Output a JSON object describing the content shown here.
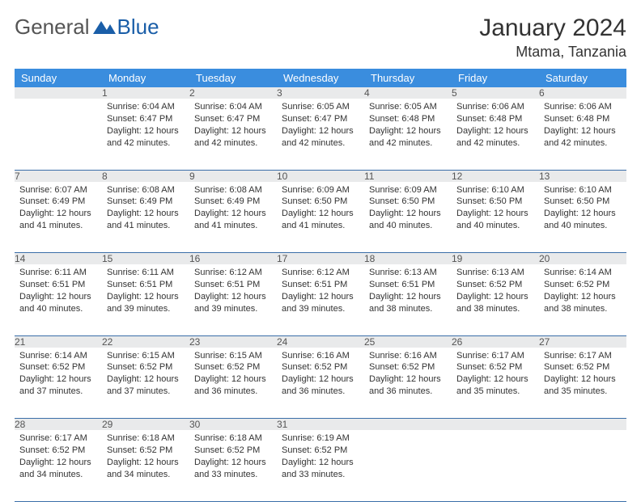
{
  "brand": {
    "part1": "General",
    "part2": "Blue"
  },
  "header": {
    "title": "January 2024",
    "location": "Mtama, Tanzania"
  },
  "colors": {
    "header_bg": "#3a8dde",
    "header_text": "#ffffff",
    "daynum_bg": "#e9eaeb",
    "row_border": "#3a6ea8",
    "brand_blue": "#1a5ea8"
  },
  "weekdays": [
    "Sunday",
    "Monday",
    "Tuesday",
    "Wednesday",
    "Thursday",
    "Friday",
    "Saturday"
  ],
  "first_weekday_index": 1,
  "days": {
    "1": {
      "sunrise": "6:04 AM",
      "sunset": "6:47 PM",
      "daylight": "12 hours and 42 minutes."
    },
    "2": {
      "sunrise": "6:04 AM",
      "sunset": "6:47 PM",
      "daylight": "12 hours and 42 minutes."
    },
    "3": {
      "sunrise": "6:05 AM",
      "sunset": "6:47 PM",
      "daylight": "12 hours and 42 minutes."
    },
    "4": {
      "sunrise": "6:05 AM",
      "sunset": "6:48 PM",
      "daylight": "12 hours and 42 minutes."
    },
    "5": {
      "sunrise": "6:06 AM",
      "sunset": "6:48 PM",
      "daylight": "12 hours and 42 minutes."
    },
    "6": {
      "sunrise": "6:06 AM",
      "sunset": "6:48 PM",
      "daylight": "12 hours and 42 minutes."
    },
    "7": {
      "sunrise": "6:07 AM",
      "sunset": "6:49 PM",
      "daylight": "12 hours and 41 minutes."
    },
    "8": {
      "sunrise": "6:08 AM",
      "sunset": "6:49 PM",
      "daylight": "12 hours and 41 minutes."
    },
    "9": {
      "sunrise": "6:08 AM",
      "sunset": "6:49 PM",
      "daylight": "12 hours and 41 minutes."
    },
    "10": {
      "sunrise": "6:09 AM",
      "sunset": "6:50 PM",
      "daylight": "12 hours and 41 minutes."
    },
    "11": {
      "sunrise": "6:09 AM",
      "sunset": "6:50 PM",
      "daylight": "12 hours and 40 minutes."
    },
    "12": {
      "sunrise": "6:10 AM",
      "sunset": "6:50 PM",
      "daylight": "12 hours and 40 minutes."
    },
    "13": {
      "sunrise": "6:10 AM",
      "sunset": "6:50 PM",
      "daylight": "12 hours and 40 minutes."
    },
    "14": {
      "sunrise": "6:11 AM",
      "sunset": "6:51 PM",
      "daylight": "12 hours and 40 minutes."
    },
    "15": {
      "sunrise": "6:11 AM",
      "sunset": "6:51 PM",
      "daylight": "12 hours and 39 minutes."
    },
    "16": {
      "sunrise": "6:12 AM",
      "sunset": "6:51 PM",
      "daylight": "12 hours and 39 minutes."
    },
    "17": {
      "sunrise": "6:12 AM",
      "sunset": "6:51 PM",
      "daylight": "12 hours and 39 minutes."
    },
    "18": {
      "sunrise": "6:13 AM",
      "sunset": "6:51 PM",
      "daylight": "12 hours and 38 minutes."
    },
    "19": {
      "sunrise": "6:13 AM",
      "sunset": "6:52 PM",
      "daylight": "12 hours and 38 minutes."
    },
    "20": {
      "sunrise": "6:14 AM",
      "sunset": "6:52 PM",
      "daylight": "12 hours and 38 minutes."
    },
    "21": {
      "sunrise": "6:14 AM",
      "sunset": "6:52 PM",
      "daylight": "12 hours and 37 minutes."
    },
    "22": {
      "sunrise": "6:15 AM",
      "sunset": "6:52 PM",
      "daylight": "12 hours and 37 minutes."
    },
    "23": {
      "sunrise": "6:15 AM",
      "sunset": "6:52 PM",
      "daylight": "12 hours and 36 minutes."
    },
    "24": {
      "sunrise": "6:16 AM",
      "sunset": "6:52 PM",
      "daylight": "12 hours and 36 minutes."
    },
    "25": {
      "sunrise": "6:16 AM",
      "sunset": "6:52 PM",
      "daylight": "12 hours and 36 minutes."
    },
    "26": {
      "sunrise": "6:17 AM",
      "sunset": "6:52 PM",
      "daylight": "12 hours and 35 minutes."
    },
    "27": {
      "sunrise": "6:17 AM",
      "sunset": "6:52 PM",
      "daylight": "12 hours and 35 minutes."
    },
    "28": {
      "sunrise": "6:17 AM",
      "sunset": "6:52 PM",
      "daylight": "12 hours and 34 minutes."
    },
    "29": {
      "sunrise": "6:18 AM",
      "sunset": "6:52 PM",
      "daylight": "12 hours and 34 minutes."
    },
    "30": {
      "sunrise": "6:18 AM",
      "sunset": "6:52 PM",
      "daylight": "12 hours and 33 minutes."
    },
    "31": {
      "sunrise": "6:19 AM",
      "sunset": "6:52 PM",
      "daylight": "12 hours and 33 minutes."
    }
  },
  "labels": {
    "sunrise": "Sunrise: ",
    "sunset": "Sunset: ",
    "daylight": "Daylight: "
  }
}
